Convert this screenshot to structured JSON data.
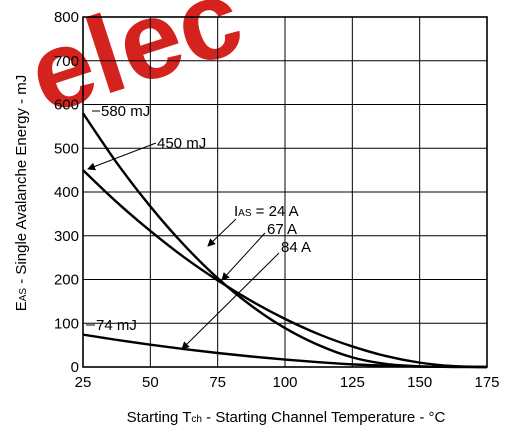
{
  "chart_data": {
    "type": "line",
    "xlabel_pre": "Starting T",
    "xlabel_sub": "ch",
    "xlabel_post": " - Starting Channel Temperature - °C",
    "ylabel_pre": "E",
    "ylabel_sub": "AS",
    "ylabel_post": " - Single Avalanche Energy - mJ",
    "xlim": [
      25,
      175
    ],
    "ylim": [
      0,
      800
    ],
    "xticks": [
      "25",
      "50",
      "75",
      "100",
      "125",
      "150",
      "175"
    ],
    "yticks": [
      "0",
      "100",
      "200",
      "300",
      "400",
      "500",
      "600",
      "700",
      "800"
    ],
    "grid": true,
    "series": [
      {
        "name": "24 A",
        "x": [
          25,
          37.5,
          50,
          62.5,
          75,
          87.5,
          100,
          112.5,
          125,
          137.5,
          150,
          162.5,
          175
        ],
        "values": [
          580,
          467,
          367,
          279,
          203,
          140,
          89,
          50,
          22,
          7,
          1.5,
          0.2,
          0
        ]
      },
      {
        "name": "67 A",
        "x": [
          25,
          37.5,
          50,
          62.5,
          75,
          87.5,
          100,
          112.5,
          125,
          137.5,
          150,
          162.5,
          175
        ],
        "values": [
          450,
          377,
          311,
          251,
          198,
          151,
          110,
          75,
          47,
          25,
          10,
          2,
          0
        ]
      },
      {
        "name": "84 A",
        "x": [
          25,
          37.5,
          50,
          62.5,
          75,
          87.5,
          100,
          112.5,
          125,
          137.5,
          150,
          162.5,
          175
        ],
        "values": [
          74,
          62,
          51,
          41,
          32,
          24,
          17,
          11,
          6,
          3,
          1,
          0.2,
          0
        ]
      }
    ],
    "annotations": {
      "e580": "580 mJ",
      "e450": "450 mJ",
      "e74": "74 mJ",
      "ias_pre": "I",
      "ias_sub": "AS",
      "ias_post": " = 24 A",
      "i67": "67 A",
      "i84": "84 A"
    }
  },
  "watermark": "elec"
}
